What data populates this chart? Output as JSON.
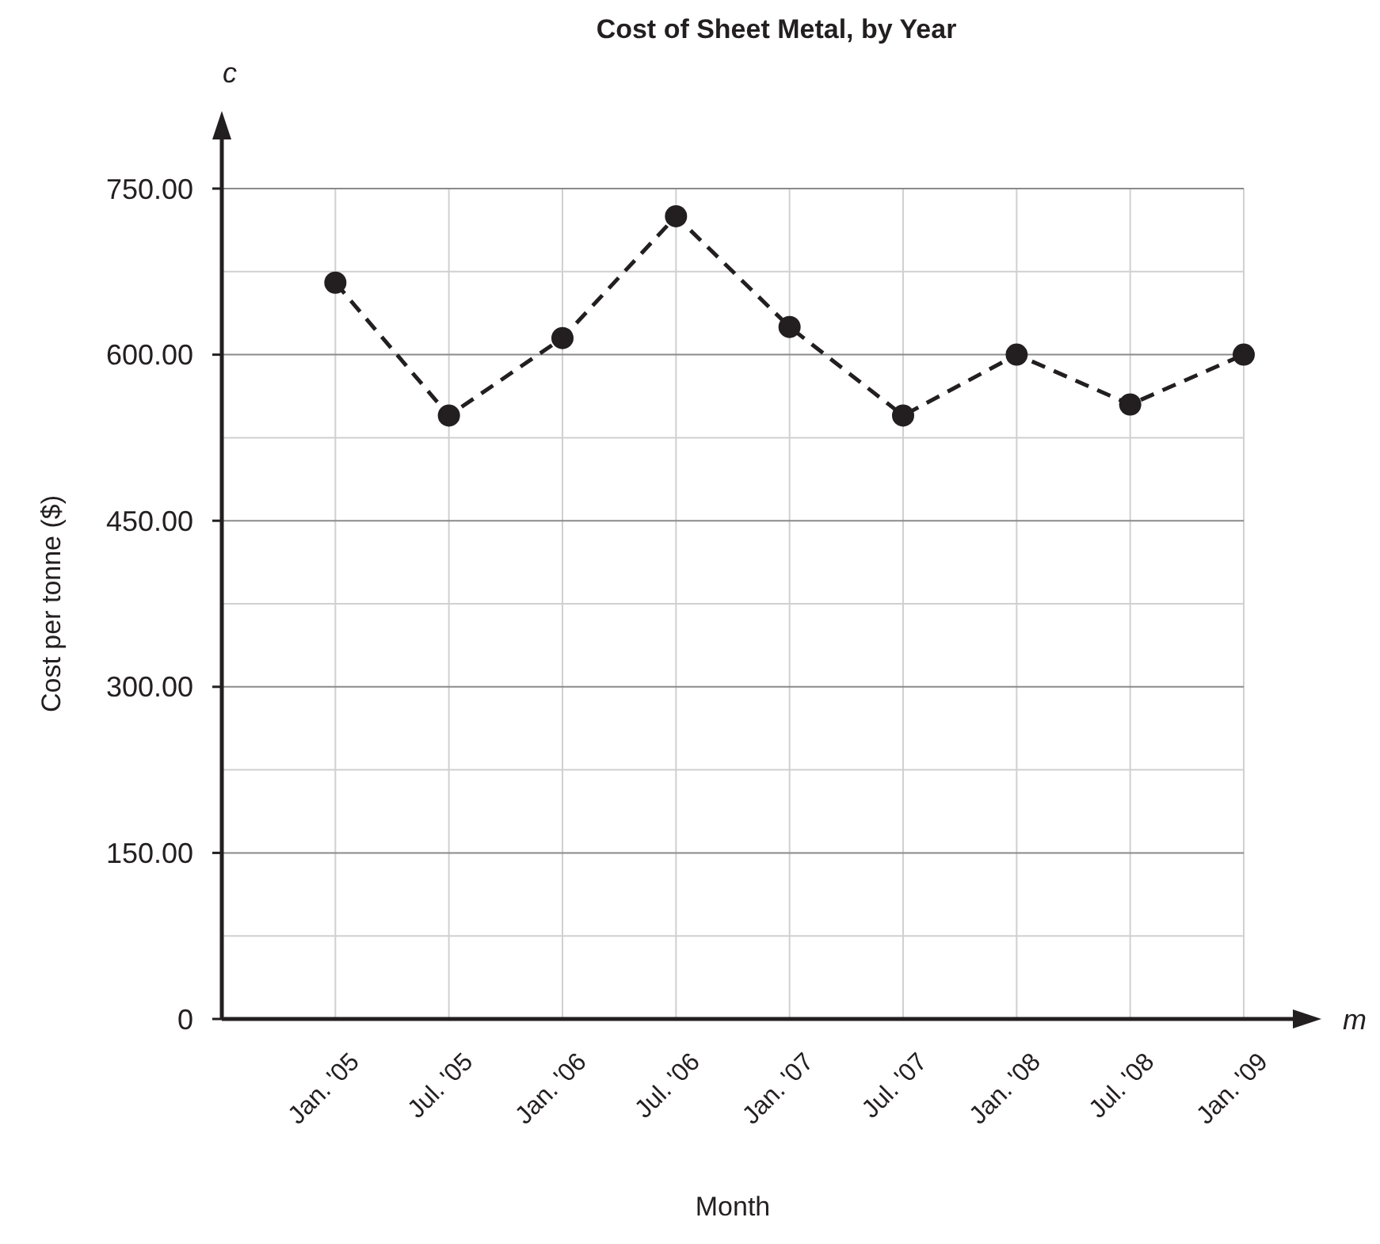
{
  "chart_data": {
    "type": "line",
    "title": "Cost of Sheet Metal, by Year",
    "xlabel": "Month",
    "ylabel": "Cost per tonne ($)",
    "annotations": [
      "c",
      "m"
    ],
    "categories": [
      "Jan. '05",
      "Jul. '05",
      "Jan. '06",
      "Jul. '06",
      "Jan. '07",
      "Jul. '07",
      "Jan. '08",
      "Jul. '08",
      "Jan. '09"
    ],
    "series": [
      {
        "color": "#231f20",
        "values": [
          665,
          545,
          615,
          725,
          625,
          545,
          600,
          555,
          600
        ]
      }
    ],
    "ylim": [
      0,
      750
    ],
    "yticks": [
      {
        "value": 0,
        "label": "0"
      },
      {
        "value": 150,
        "label": "150.00"
      },
      {
        "value": 300,
        "label": "300.00"
      },
      {
        "value": 450,
        "label": "450.00"
      },
      {
        "value": 600,
        "label": "600.00"
      },
      {
        "value": 750,
        "label": "750.00"
      }
    ],
    "grid": true,
    "marker": "circle",
    "line_style": "dashed"
  }
}
